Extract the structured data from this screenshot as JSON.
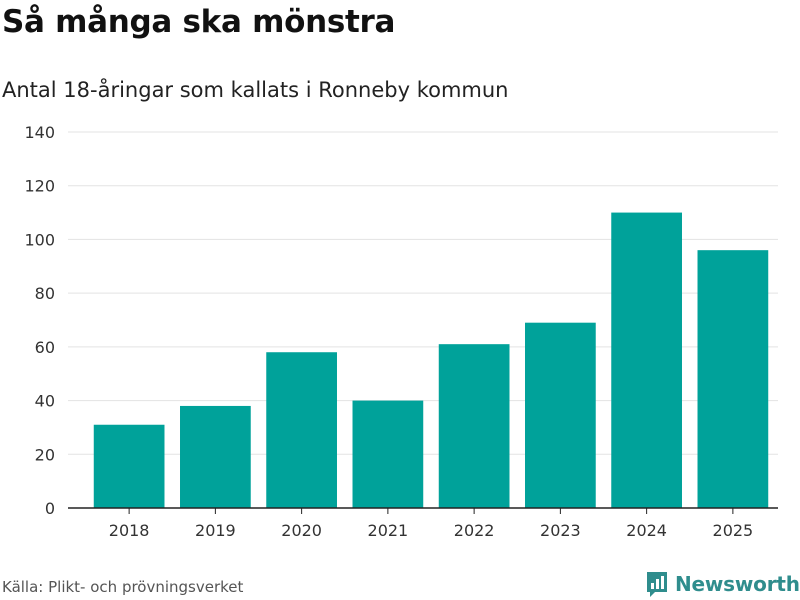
{
  "header": {
    "title": "Så många ska mönstra",
    "subtitle": "Antal 18-åringar som kallats i Ronneby kommun"
  },
  "footer": {
    "source": "Källa: Plikt- och prövningsverket",
    "brand": "Newsworthy"
  },
  "colors": {
    "bar": "#00a29a",
    "grid": "#e3e3e3",
    "axis": "#222222",
    "brand": "#2f8d8d"
  },
  "chart_data": {
    "type": "bar",
    "title": "Så många ska mönstra",
    "subtitle": "Antal 18-åringar som kallats i Ronneby kommun",
    "xlabel": "",
    "ylabel": "",
    "categories": [
      "2018",
      "2019",
      "2020",
      "2021",
      "2022",
      "2023",
      "2024",
      "2025"
    ],
    "values": [
      31,
      38,
      58,
      40,
      61,
      69,
      110,
      96
    ],
    "ylim": [
      0,
      140
    ],
    "yticks": [
      0,
      20,
      40,
      60,
      80,
      100,
      120,
      140
    ],
    "grid": true,
    "legend": "none"
  }
}
